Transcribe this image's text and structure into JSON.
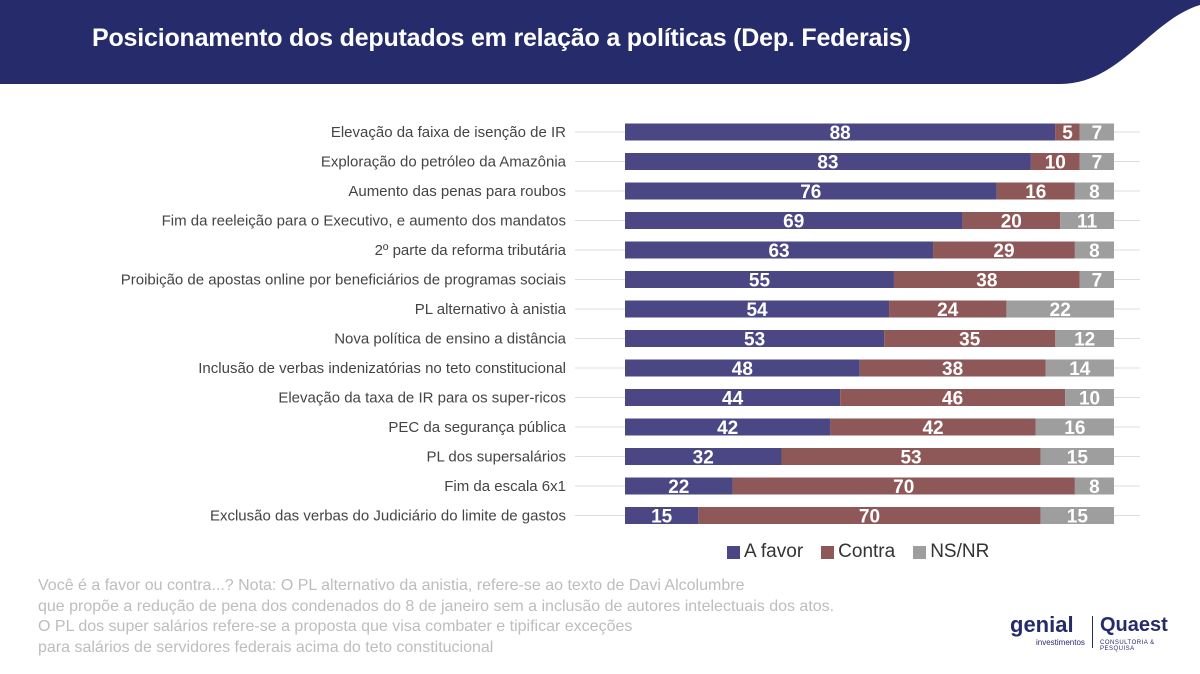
{
  "title": "Posicionamento dos deputados em relação a políticas (Dep. Federais)",
  "colors": {
    "header": "#262c6b",
    "a_favor": "#4b4785",
    "contra": "#8e5758",
    "ns_nr": "#9e9e9e",
    "grid": "#dddddd"
  },
  "chart_data": {
    "type": "bar",
    "orientation": "horizontal",
    "stacked": true,
    "xlim": [
      0,
      100
    ],
    "categories": [
      "Elevação da faixa de isenção de IR",
      "Exploração do petróleo da Amazônia",
      "Aumento das penas para roubos",
      "Fim da reeleição para o Executivo, e aumento dos mandatos",
      "2º parte da reforma tributária",
      "Proibição de apostas online por beneficiários de programas sociais",
      "PL alternativo à anistia",
      "Nova política de ensino a distância",
      "Inclusão de verbas indenizatórias no teto constitucional",
      "Elevação da taxa de IR para os super-ricos",
      "PEC da segurança pública",
      "PL dos supersalários",
      "Fim da escala 6x1",
      "Exclusão das verbas do Judiciário do limite de gastos"
    ],
    "series": [
      {
        "name": "A favor",
        "color": "#4b4785",
        "values": [
          88,
          83,
          76,
          69,
          63,
          55,
          54,
          53,
          48,
          44,
          42,
          32,
          22,
          15
        ]
      },
      {
        "name": "Contra",
        "color": "#8e5758",
        "values": [
          5,
          10,
          16,
          20,
          29,
          38,
          24,
          35,
          38,
          46,
          42,
          53,
          70,
          70
        ]
      },
      {
        "name": "NS/NR",
        "color": "#9e9e9e",
        "values": [
          7,
          7,
          8,
          11,
          8,
          7,
          22,
          12,
          14,
          10,
          16,
          15,
          8,
          15
        ]
      }
    ],
    "legend_position": "bottom-right"
  },
  "footnote": [
    "Você é a favor ou contra...? Nota: O PL alternativo da anistia, refere-se ao texto de Davi Alcolumbre",
    "que propõe a redução de pena dos condenados do 8 de janeiro sem a inclusão de autores intelectuais dos atos.",
    "O PL dos super salários refere-se a proposta que visa combater e tipificar exceções",
    "para salários de servidores federais acima do teto constitucional"
  ],
  "logos": {
    "genial": "genial",
    "genial_sub": "investimentos",
    "quaest": "Quaest",
    "quaest_sub": "CONSULTORIA & PESQUISA"
  }
}
